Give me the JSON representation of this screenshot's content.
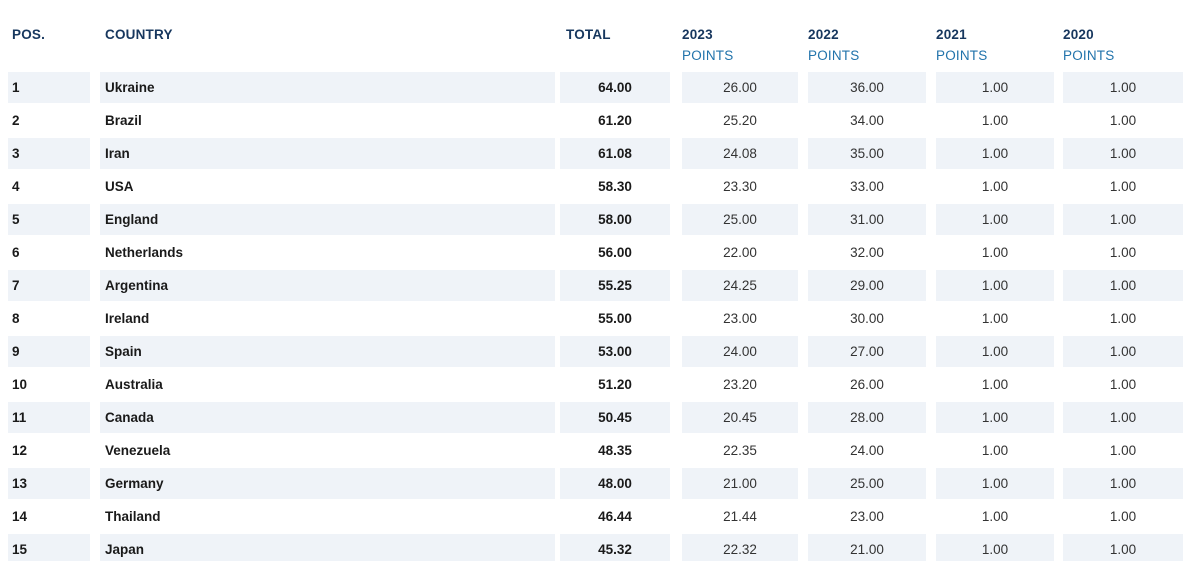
{
  "table": {
    "columns": {
      "pos": "POS.",
      "country": "COUNTRY",
      "total": "TOTAL",
      "y2023": {
        "line1": "2023",
        "line2": "POINTS"
      },
      "y2022": {
        "line1": "2022",
        "line2": "POINTS"
      },
      "y2021": {
        "line1": "2021",
        "line2": "POINTS"
      },
      "y2020": {
        "line1": "2020",
        "line2": "POINTS"
      }
    },
    "rows": [
      {
        "pos": "1",
        "country": "Ukraine",
        "total": "64.00",
        "p2023": "26.00",
        "p2022": "36.00",
        "p2021": "1.00",
        "p2020": "1.00"
      },
      {
        "pos": "2",
        "country": "Brazil",
        "total": "61.20",
        "p2023": "25.20",
        "p2022": "34.00",
        "p2021": "1.00",
        "p2020": "1.00"
      },
      {
        "pos": "3",
        "country": "Iran",
        "total": "61.08",
        "p2023": "24.08",
        "p2022": "35.00",
        "p2021": "1.00",
        "p2020": "1.00"
      },
      {
        "pos": "4",
        "country": "USA",
        "total": "58.30",
        "p2023": "23.30",
        "p2022": "33.00",
        "p2021": "1.00",
        "p2020": "1.00"
      },
      {
        "pos": "5",
        "country": "England",
        "total": "58.00",
        "p2023": "25.00",
        "p2022": "31.00",
        "p2021": "1.00",
        "p2020": "1.00"
      },
      {
        "pos": "6",
        "country": "Netherlands",
        "total": "56.00",
        "p2023": "22.00",
        "p2022": "32.00",
        "p2021": "1.00",
        "p2020": "1.00"
      },
      {
        "pos": "7",
        "country": "Argentina",
        "total": "55.25",
        "p2023": "24.25",
        "p2022": "29.00",
        "p2021": "1.00",
        "p2020": "1.00"
      },
      {
        "pos": "8",
        "country": "Ireland",
        "total": "55.00",
        "p2023": "23.00",
        "p2022": "30.00",
        "p2021": "1.00",
        "p2020": "1.00"
      },
      {
        "pos": "9",
        "country": "Spain",
        "total": "53.00",
        "p2023": "24.00",
        "p2022": "27.00",
        "p2021": "1.00",
        "p2020": "1.00"
      },
      {
        "pos": "10",
        "country": "Australia",
        "total": "51.20",
        "p2023": "23.20",
        "p2022": "26.00",
        "p2021": "1.00",
        "p2020": "1.00"
      },
      {
        "pos": "11",
        "country": "Canada",
        "total": "50.45",
        "p2023": "20.45",
        "p2022": "28.00",
        "p2021": "1.00",
        "p2020": "1.00"
      },
      {
        "pos": "12",
        "country": "Venezuela",
        "total": "48.35",
        "p2023": "22.35",
        "p2022": "24.00",
        "p2021": "1.00",
        "p2020": "1.00"
      },
      {
        "pos": "13",
        "country": "Germany",
        "total": "48.00",
        "p2023": "21.00",
        "p2022": "25.00",
        "p2021": "1.00",
        "p2020": "1.00"
      },
      {
        "pos": "14",
        "country": "Thailand",
        "total": "46.44",
        "p2023": "21.44",
        "p2022": "23.00",
        "p2021": "1.00",
        "p2020": "1.00"
      },
      {
        "pos": "15",
        "country": "Japan",
        "total": "45.32",
        "p2023": "22.32",
        "p2022": "21.00",
        "p2021": "1.00",
        "p2020": "1.00"
      }
    ]
  },
  "colors": {
    "header_primary": "#17375e",
    "header_secondary": "#2173ab",
    "row_stripe": "#eff3f8",
    "value_text": "#333333",
    "bold_text": "#1a1a1a",
    "background": "#ffffff"
  }
}
